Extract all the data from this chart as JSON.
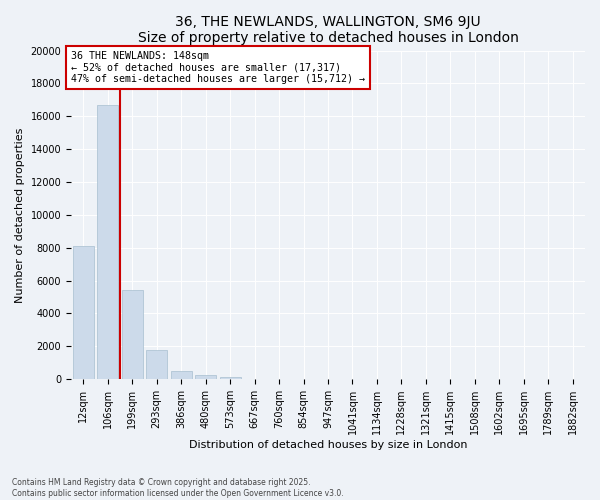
{
  "title1": "36, THE NEWLANDS, WALLINGTON, SM6 9JU",
  "title2": "Size of property relative to detached houses in London",
  "xlabel": "Distribution of detached houses by size in London",
  "ylabel": "Number of detached properties",
  "categories": [
    "12sqm",
    "106sqm",
    "199sqm",
    "293sqm",
    "386sqm",
    "480sqm",
    "573sqm",
    "667sqm",
    "760sqm",
    "854sqm",
    "947sqm",
    "1041sqm",
    "1134sqm",
    "1228sqm",
    "1321sqm",
    "1415sqm",
    "1508sqm",
    "1602sqm",
    "1695sqm",
    "1789sqm",
    "1882sqm"
  ],
  "values": [
    8100,
    16700,
    5400,
    1750,
    480,
    250,
    120,
    0,
    0,
    0,
    0,
    0,
    0,
    0,
    0,
    0,
    0,
    0,
    0,
    0,
    0
  ],
  "bar_color": "#ccdaea",
  "bar_edge_color": "#a8bfcf",
  "vline_x": 1.5,
  "vline_color": "#cc0000",
  "annotation_title": "36 THE NEWLANDS: 148sqm",
  "annotation_line1": "← 52% of detached houses are smaller (17,317)",
  "annotation_line2": "47% of semi-detached houses are larger (15,712) →",
  "annotation_box_color": "#cc0000",
  "ylim": [
    0,
    20000
  ],
  "yticks": [
    0,
    2000,
    4000,
    6000,
    8000,
    10000,
    12000,
    14000,
    16000,
    18000,
    20000
  ],
  "footer1": "Contains HM Land Registry data © Crown copyright and database right 2025.",
  "footer2": "Contains public sector information licensed under the Open Government Licence v3.0.",
  "bg_color": "#eef2f7",
  "plot_bg_color": "#eef2f7",
  "grid_color": "#ffffff",
  "title_fontsize": 10,
  "axis_fontsize": 8,
  "tick_fontsize": 7
}
